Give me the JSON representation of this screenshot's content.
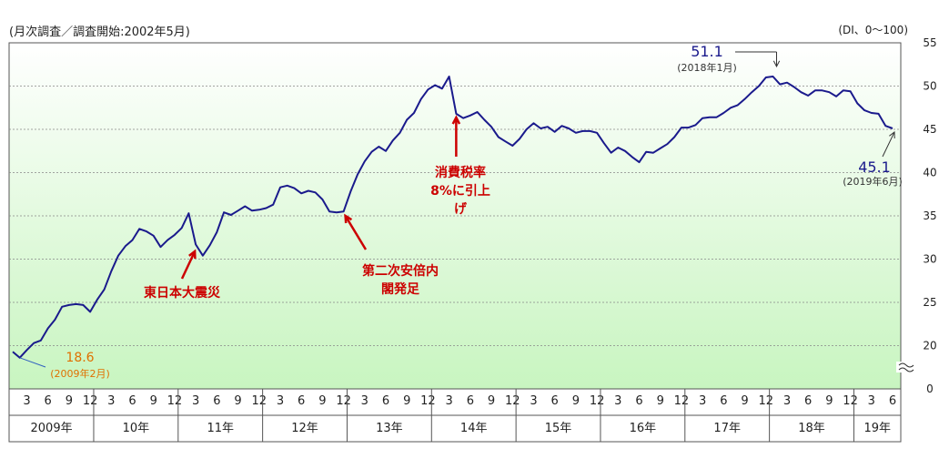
{
  "chart_data": {
    "type": "line",
    "subtitle": "(月次調査／調査開始:2002年5月)",
    "unit_label": "(DI、0〜100)",
    "ylim": [
      0,
      55
    ],
    "ytick_labels": [
      "0",
      "20",
      "25",
      "30",
      "35",
      "40",
      "45",
      "50",
      "55"
    ],
    "yticks": [
      0,
      20,
      25,
      30,
      35,
      40,
      45,
      50,
      55
    ],
    "axis_break": true,
    "grid": true,
    "month_tick_labels": [
      "3",
      "6",
      "9",
      "12"
    ],
    "year_labels": [
      "2009年",
      "10年",
      "11年",
      "12年",
      "13年",
      "14年",
      "15年",
      "16年",
      "17年",
      "18年",
      "19年"
    ],
    "series": [
      {
        "start": "2009-01",
        "color": "#1a1a8c",
        "values": [
          19.3,
          18.6,
          19.5,
          20.3,
          20.6,
          22.0,
          23.0,
          24.5,
          24.7,
          24.8,
          24.7,
          23.9,
          25.3,
          26.5,
          28.6,
          30.4,
          31.5,
          32.2,
          33.5,
          33.2,
          32.7,
          31.4,
          32.2,
          32.8,
          33.6,
          35.3,
          31.7,
          30.4,
          31.6,
          33.1,
          35.4,
          35.1,
          35.6,
          36.1,
          35.6,
          35.7,
          35.9,
          36.3,
          38.3,
          38.5,
          38.2,
          37.6,
          37.9,
          37.7,
          36.9,
          35.5,
          35.4,
          35.5,
          37.8,
          39.8,
          41.3,
          42.4,
          43.0,
          42.5,
          43.7,
          44.6,
          46.1,
          46.9,
          48.5,
          49.6,
          50.1,
          49.7,
          51.1,
          46.8,
          46.3,
          46.6,
          47.0,
          46.1,
          45.3,
          44.1,
          43.6,
          43.1,
          43.9,
          45.0,
          45.7,
          45.1,
          45.3,
          44.7,
          45.4,
          45.1,
          44.6,
          44.8,
          44.8,
          44.6,
          43.4,
          42.3,
          42.9,
          42.5,
          41.8,
          41.2,
          42.4,
          42.3,
          42.8,
          43.3,
          44.1,
          45.2,
          45.2,
          45.5,
          46.3,
          46.4,
          46.4,
          46.9,
          47.5,
          47.8,
          48.5,
          49.3,
          50.0,
          51.0,
          51.1,
          50.2,
          50.4,
          49.9,
          49.3,
          48.9,
          49.5,
          49.5,
          49.3,
          48.8,
          49.5,
          49.4,
          48.0,
          47.2,
          46.9,
          46.8,
          45.4,
          45.1
        ]
      }
    ],
    "annotations": [
      {
        "id": "low",
        "value": "18.6",
        "sub": "(2009年2月)",
        "date": "2009-02",
        "color": "#e07000"
      },
      {
        "id": "peak",
        "value": "51.1",
        "sub": "(2018年1月)",
        "date": "2018-01",
        "color": "#1a1a8c"
      },
      {
        "id": "last",
        "value": "45.1",
        "sub": "(2019年6月)",
        "date": "2019-06",
        "color": "#1a1a8c"
      },
      {
        "id": "quake",
        "text": "東日本大震災",
        "date": "2011-03",
        "color": "#cc0000"
      },
      {
        "id": "abe",
        "text": "第二次安倍内閣発足",
        "lines": [
          "第二次安倍内",
          "閣発足"
        ],
        "date": "2012-12",
        "color": "#cc0000"
      },
      {
        "id": "tax",
        "text": "消費税率8%に引上げ",
        "lines": [
          "消費税率",
          "8%に引上",
          "げ"
        ],
        "date": "2014-04",
        "color": "#cc0000"
      }
    ]
  }
}
